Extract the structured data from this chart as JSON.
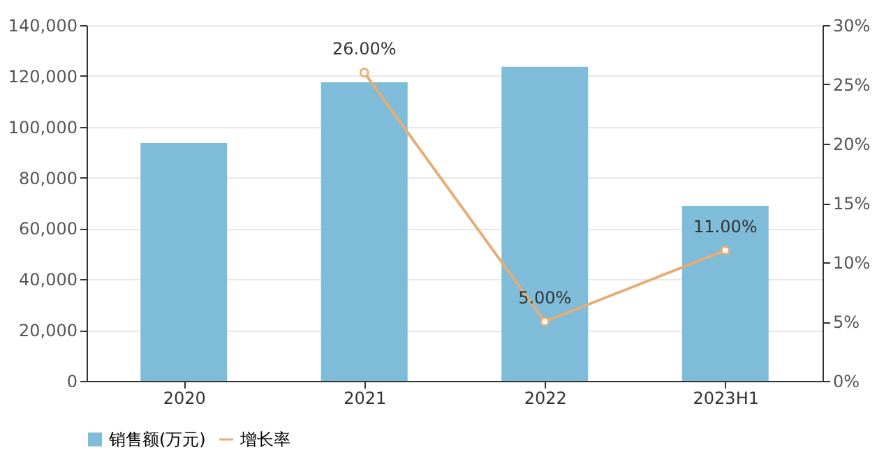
{
  "chart_data": {
    "type": "bar",
    "categories": [
      "2020",
      "2021",
      "2022",
      "2023H1"
    ],
    "series": [
      {
        "name": "销售额(万元)",
        "color": "#7ebcd9",
        "values": [
          93600,
          117500,
          123600,
          68900
        ]
      },
      {
        "name": "增长率",
        "type": "line",
        "axis": "y2",
        "color": "#e5ae78",
        "values": [
          null,
          26,
          5,
          11
        ],
        "value_labels": [
          null,
          "26.00%",
          "5.00%",
          "11.00%"
        ]
      }
    ],
    "ylim": [
      0,
      140000
    ],
    "yticks": [
      0,
      {
        "value": 20000,
        "label": "20,000"
      },
      {
        "value": 40000,
        "label": "40,000"
      },
      {
        "value": 60000,
        "label": "60,000"
      },
      {
        "value": 80000,
        "label": "80,000"
      },
      {
        "value": 100000,
        "label": "100,000"
      },
      {
        "value": 120000,
        "label": "120,000"
      },
      {
        "value": 140000,
        "label": "140,000"
      }
    ],
    "y2lim": [
      0,
      30
    ],
    "y2ticks": [
      {
        "value": 0,
        "label": "0%"
      },
      {
        "value": 5,
        "label": "5%"
      },
      {
        "value": 10,
        "label": "10%"
      },
      {
        "value": 15,
        "label": "15%"
      },
      {
        "value": 20,
        "label": "20%"
      },
      {
        "value": 25,
        "label": "25%"
      },
      {
        "value": 30,
        "label": "30%"
      }
    ],
    "grid": "y",
    "legend": "bottom",
    "marker": "circle",
    "line_style": "solid"
  }
}
